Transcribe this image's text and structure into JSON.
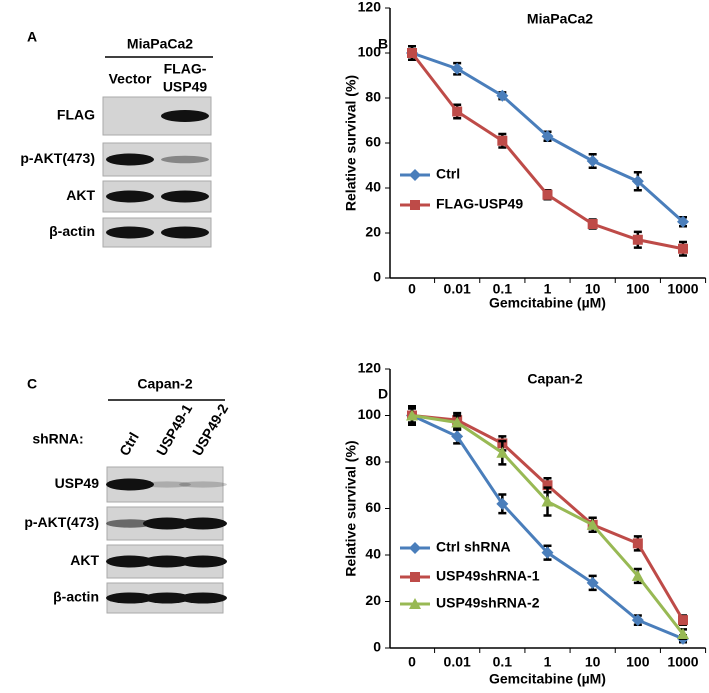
{
  "chart_data": [
    {
      "type": "line",
      "panel": "B",
      "title": "MiaPaCa2",
      "xlabel": "Gemcitabine (µM)",
      "ylabel": "Relative survival (%)",
      "categories": [
        "0",
        "0.01",
        "0.1",
        "1",
        "10",
        "100",
        "1000"
      ],
      "ylim": [
        0,
        120
      ],
      "yticks": [
        0,
        20,
        40,
        60,
        80,
        100,
        120
      ],
      "series": [
        {
          "name": "Ctrl",
          "color": "#4a7ebb",
          "marker": "diamond",
          "values": [
            100,
            93,
            81,
            63,
            52,
            43,
            25
          ],
          "errors": [
            3,
            2.5,
            1.5,
            2,
            3,
            4,
            2
          ]
        },
        {
          "name": "FLAG-USP49",
          "color": "#be4b48",
          "marker": "square",
          "values": [
            100,
            74,
            61,
            37,
            24,
            17,
            13
          ],
          "errors": [
            3,
            3,
            3,
            2,
            2,
            3.5,
            3
          ]
        }
      ]
    },
    {
      "type": "line",
      "panel": "D",
      "title": "Capan-2",
      "xlabel": "Gemcitabine (µM)",
      "ylabel": "Relative survival (%)",
      "categories": [
        "0",
        "0.01",
        "0.1",
        "1",
        "10",
        "100",
        "1000"
      ],
      "ylim": [
        0,
        120
      ],
      "yticks": [
        0,
        20,
        40,
        60,
        80,
        100,
        120
      ],
      "series": [
        {
          "name": "Ctrl shRNA",
          "color": "#4a7ebb",
          "marker": "diamond",
          "values": [
            100,
            91,
            62,
            41,
            28,
            12,
            4
          ],
          "errors": [
            4,
            3,
            4,
            3,
            3,
            2,
            1.5
          ]
        },
        {
          "name": "USP49shRNA-1",
          "color": "#be4b48",
          "marker": "square",
          "values": [
            100,
            98,
            88,
            70,
            53,
            45,
            12
          ],
          "errors": [
            4,
            3,
            3,
            3,
            3,
            3,
            2
          ]
        },
        {
          "name": "USP49shRNA-2",
          "color": "#98b954",
          "marker": "triangle",
          "values": [
            100,
            97,
            84,
            63,
            53,
            31,
            6
          ],
          "errors": [
            3,
            3,
            5,
            6,
            3,
            3,
            2
          ]
        }
      ]
    }
  ],
  "blots": [
    {
      "panel": "A",
      "title": "MiaPaCa2",
      "columns": [
        [
          "Vector"
        ],
        [
          "FLAG-",
          "USP49"
        ]
      ],
      "rows": [
        "FLAG",
        "p-AKT(473)",
        "AKT",
        "β-actin"
      ]
    },
    {
      "panel": "C",
      "title": "Capan-2",
      "row_header": "shRNA:",
      "columns": [
        [
          "Ctrl"
        ],
        [
          "USP49-1"
        ],
        [
          "USP49-2"
        ]
      ],
      "rows": [
        "USP49",
        "p-AKT(473)",
        "AKT",
        "β-actin"
      ]
    }
  ]
}
